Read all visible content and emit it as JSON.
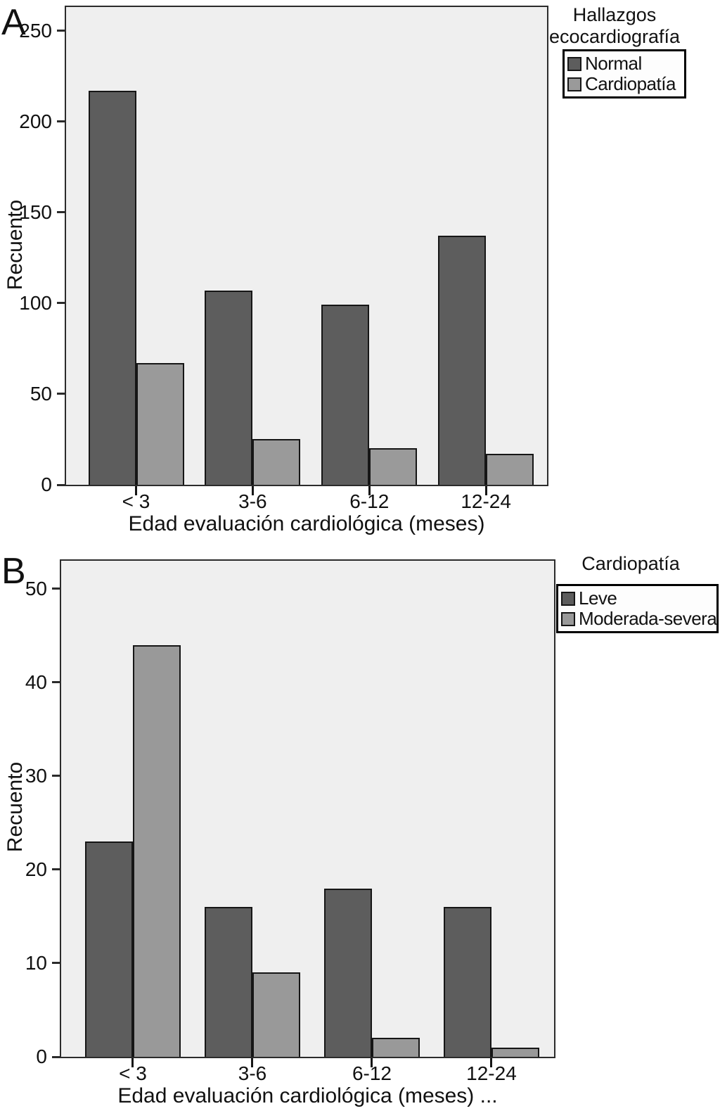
{
  "figure": {
    "background": "#ffffff",
    "plot_background": "#efefef",
    "bar_border_color": "#161616",
    "axis_color": "#2b2b2b"
  },
  "chart_data": [
    {
      "type": "bar",
      "panel_label": "A",
      "categories": [
        "< 3",
        "3-6",
        "6-12",
        "12-24"
      ],
      "series": [
        {
          "name": "Normal",
          "color": "#5d5d5d",
          "values": [
            217,
            107,
            99,
            137
          ]
        },
        {
          "name": "Cardiopatía",
          "color": "#9a9a9a",
          "values": [
            67,
            25,
            20,
            17
          ]
        }
      ],
      "xlabel": "Edad evaluación cardiológica (meses)",
      "ylabel": "Recuento",
      "ylim": [
        0,
        263
      ],
      "yticks": [
        0,
        50,
        100,
        150,
        200,
        250
      ],
      "grid": false,
      "legend": {
        "title": "Hallazgos ecocardiografía",
        "title_lines": [
          "Hallazgos",
          "ecocardiografía"
        ],
        "position": "outside-top-right"
      }
    },
    {
      "type": "bar",
      "panel_label": "B",
      "categories": [
        "< 3",
        "3-6",
        "6-12",
        "12-24"
      ],
      "series": [
        {
          "name": "Leve",
          "color": "#5d5d5d",
          "values": [
            23,
            16,
            18,
            16
          ]
        },
        {
          "name": "Moderada-severa",
          "color": "#999999",
          "values": [
            44,
            9,
            2,
            1
          ]
        }
      ],
      "xlabel": "Edad evaluación cardiológica (meses) ...",
      "ylabel": "Recuento",
      "ylim": [
        0,
        53
      ],
      "yticks": [
        0,
        10,
        20,
        30,
        40,
        50
      ],
      "grid": false,
      "legend": {
        "title": "Cardiopatía",
        "title_lines": [
          "Cardiopatía"
        ],
        "position": "outside-top-right"
      }
    }
  ]
}
